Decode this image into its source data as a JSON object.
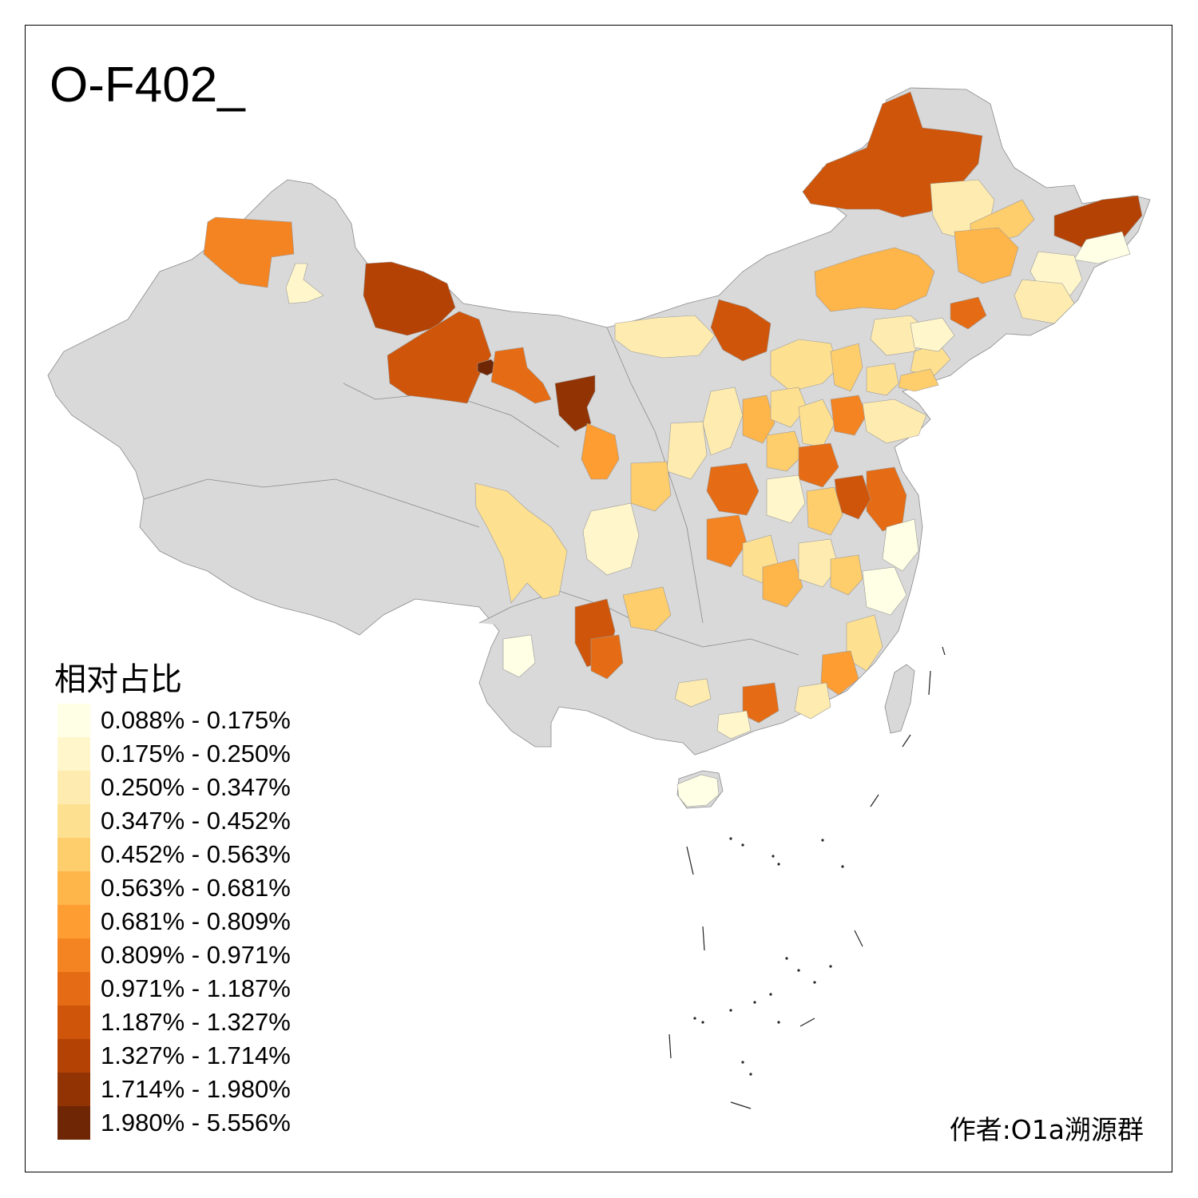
{
  "title": "O-F402_",
  "legend": {
    "title": "相对占比",
    "items": [
      {
        "label": "0.088% - 0.175%",
        "color": "#ffffe5"
      },
      {
        "label": "0.175% - 0.250%",
        "color": "#fff6cc"
      },
      {
        "label": "0.250% - 0.347%",
        "color": "#feebb0"
      },
      {
        "label": "0.347% - 0.452%",
        "color": "#fee091"
      },
      {
        "label": "0.452% - 0.563%",
        "color": "#fecd6c"
      },
      {
        "label": "0.563% - 0.681%",
        "color": "#feb54a"
      },
      {
        "label": "0.681% - 0.809%",
        "color": "#fd9d32"
      },
      {
        "label": "0.809% - 0.971%",
        "color": "#f48422"
      },
      {
        "label": "0.971% - 1.187%",
        "color": "#e56c14"
      },
      {
        "label": "1.187% - 1.327%",
        "color": "#cf550a"
      },
      {
        "label": "1.327% - 1.714%",
        "color": "#b44204"
      },
      {
        "label": "1.714% - 1.980%",
        "color": "#923304"
      },
      {
        "label": "1.980% - 5.556%",
        "color": "#6e2605"
      }
    ]
  },
  "author": "作者:O1a溯源群",
  "map": {
    "base_color": "#d9d9d9",
    "region_classes": [
      9,
      7,
      1,
      10,
      9,
      12,
      11,
      3,
      6,
      8,
      2,
      10,
      0,
      1,
      2,
      4,
      5,
      8,
      2,
      3,
      4,
      1,
      5,
      9,
      2,
      3,
      4,
      3,
      2,
      5,
      3,
      3,
      7,
      2,
      4,
      8,
      8,
      0,
      9,
      4,
      1,
      8,
      2,
      4,
      7,
      3,
      5,
      2,
      4,
      0,
      3,
      6,
      2,
      8,
      2,
      1,
      1,
      4,
      9,
      8,
      0
    ]
  }
}
